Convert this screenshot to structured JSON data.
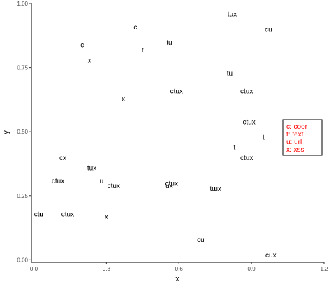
{
  "chart_data": {
    "type": "scatter",
    "title": "",
    "xlabel": "x",
    "ylabel": "y",
    "xlim": [
      -0.01,
      1.2
    ],
    "ylim": [
      -0.01,
      1.0
    ],
    "x_ticks": [
      0.0,
      0.3,
      0.6,
      0.9,
      1.2
    ],
    "x_tick_labels": [
      "0.0",
      "0.3",
      "0.6",
      "0.9",
      "1.2"
    ],
    "y_ticks": [
      0.0,
      0.25,
      0.5,
      0.75,
      1.0
    ],
    "y_tick_labels": [
      "0.00",
      "0.25",
      "0.50",
      "0.75",
      "1.00"
    ],
    "grid": false,
    "points": [
      {
        "x": 0.42,
        "y": 0.91,
        "label": "c"
      },
      {
        "x": 0.82,
        "y": 0.96,
        "label": "tux"
      },
      {
        "x": 0.97,
        "y": 0.9,
        "label": "cu"
      },
      {
        "x": 0.2,
        "y": 0.84,
        "label": "c"
      },
      {
        "x": 0.56,
        "y": 0.85,
        "label": "tu"
      },
      {
        "x": 0.45,
        "y": 0.82,
        "label": "t"
      },
      {
        "x": 0.23,
        "y": 0.78,
        "label": "x"
      },
      {
        "x": 0.81,
        "y": 0.73,
        "label": "tu"
      },
      {
        "x": 0.88,
        "y": 0.66,
        "label": "ctux"
      },
      {
        "x": 0.59,
        "y": 0.66,
        "label": "ctux"
      },
      {
        "x": 0.37,
        "y": 0.63,
        "label": "x"
      },
      {
        "x": 0.89,
        "y": 0.54,
        "label": "ctux"
      },
      {
        "x": 0.95,
        "y": 0.48,
        "label": "t"
      },
      {
        "x": 0.83,
        "y": 0.44,
        "label": "t"
      },
      {
        "x": 0.88,
        "y": 0.4,
        "label": "ctux"
      },
      {
        "x": 0.12,
        "y": 0.4,
        "label": "cx"
      },
      {
        "x": 0.24,
        "y": 0.36,
        "label": "tux"
      },
      {
        "x": 0.28,
        "y": 0.31,
        "label": "u"
      },
      {
        "x": 0.1,
        "y": 0.31,
        "label": "ctux"
      },
      {
        "x": 0.33,
        "y": 0.29,
        "label": "ctux"
      },
      {
        "x": 0.57,
        "y": 0.3,
        "label": "ctux"
      },
      {
        "x": 0.56,
        "y": 0.29,
        "label": "ux"
      },
      {
        "x": 0.74,
        "y": 0.28,
        "label": "tu"
      },
      {
        "x": 0.76,
        "y": 0.28,
        "label": "ux"
      },
      {
        "x": 0.02,
        "y": 0.18,
        "label": "ctu"
      },
      {
        "x": 0.03,
        "y": 0.18,
        "label": "u"
      },
      {
        "x": 0.14,
        "y": 0.18,
        "label": "ctux"
      },
      {
        "x": 0.3,
        "y": 0.17,
        "label": "x"
      },
      {
        "x": 0.69,
        "y": 0.08,
        "label": "cu"
      },
      {
        "x": 0.98,
        "y": 0.02,
        "label": "cux"
      }
    ],
    "legend": {
      "placement": "right",
      "entries": [
        "c: coor",
        "t: text",
        "u: url",
        "x: xss"
      ],
      "color": "#ff0000"
    }
  }
}
